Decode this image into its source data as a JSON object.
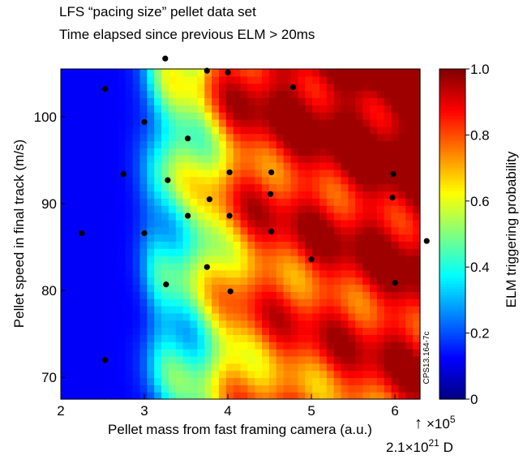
{
  "chart_data": {
    "type": "heatmap",
    "title": "LFS “pacing size” pellet data set",
    "subtitle": "Time elapsed since previous ELM > 20ms",
    "xlabel": "Pellet mass from fast framing camera (a.u.)",
    "ylabel": "Pellet speed in final track (m/s)",
    "colorbar_label": "ELM triggering probability",
    "xlim": [
      2.0,
      6.3
    ],
    "ylim": [
      67.5,
      105.5
    ],
    "x_ticks": [
      2,
      3,
      4,
      5,
      6
    ],
    "y_ticks": [
      70,
      80,
      90,
      100
    ],
    "colorbar_ticks": [
      0,
      0.2,
      0.4,
      0.6,
      0.8,
      1.0
    ],
    "colorbar_tick_labels": [
      "0",
      "0.2",
      "0.4",
      "0.6",
      "0.8",
      "1.0"
    ],
    "clim": [
      0,
      1
    ],
    "colormap": "jet",
    "x_multiplier": "×10",
    "x_multiplier_exp": "5",
    "x_multiplier_note_base": "2.1×10",
    "x_multiplier_note_exp": "21",
    "x_multiplier_note_unit": " D",
    "arrow_note": "↑",
    "figure_id": "CPS13.164-7c",
    "points": [
      [
        2.53,
        103.2
      ],
      [
        2.25,
        86.6
      ],
      [
        2.53,
        72.0
      ],
      [
        2.75,
        93.4
      ],
      [
        3.0,
        99.4
      ],
      [
        3.0,
        86.6
      ],
      [
        3.25,
        106.7
      ],
      [
        3.28,
        92.7
      ],
      [
        3.26,
        80.7
      ],
      [
        3.52,
        97.5
      ],
      [
        3.52,
        88.6
      ],
      [
        3.75,
        105.3
      ],
      [
        3.78,
        90.5
      ],
      [
        3.75,
        82.7
      ],
      [
        4.0,
        105.1
      ],
      [
        4.02,
        93.6
      ],
      [
        4.02,
        88.6
      ],
      [
        4.03,
        79.9
      ],
      [
        4.52,
        93.6
      ],
      [
        4.51,
        91.1
      ],
      [
        4.52,
        86.8
      ],
      [
        4.78,
        103.4
      ],
      [
        5.0,
        83.6
      ],
      [
        5.98,
        93.4
      ],
      [
        5.97,
        90.7
      ],
      [
        6.0,
        80.9
      ],
      [
        6.38,
        85.7
      ]
    ]
  },
  "colors": {
    "background": "#ffffff",
    "point": "#000000"
  }
}
